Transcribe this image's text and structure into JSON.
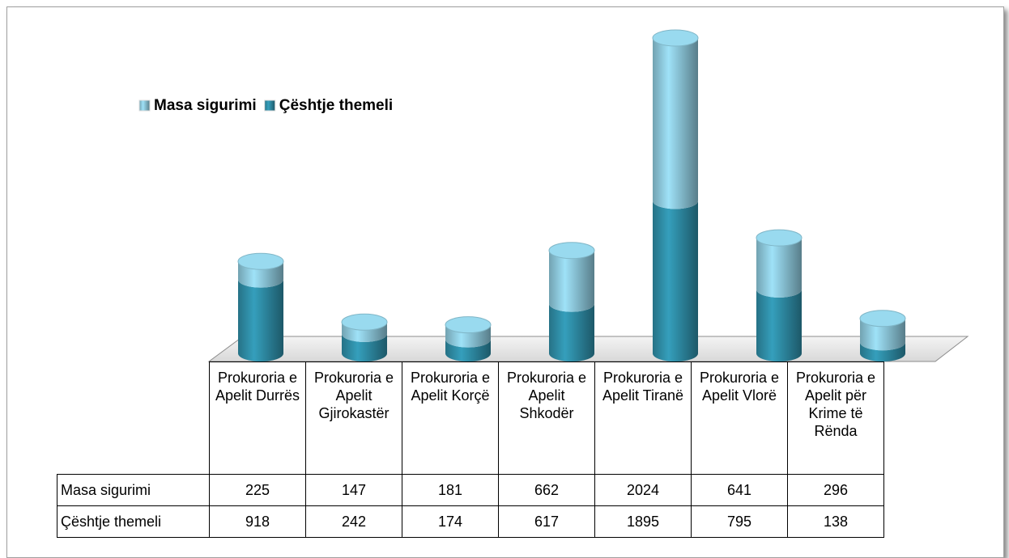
{
  "chart_data": {
    "type": "stacked-cylinder",
    "categories": [
      "Prokuroria e Apelit Durrës",
      "Prokuroria e Apelit Gjirokastër",
      "Prokuroria e Apelit Korçë",
      "Prokuroria e Apelit Shkodër",
      "Prokuroria e Apelit Tiranë",
      "Prokuroria e Apelit Vlorë",
      "Prokuroria e Apelit për Krime të Rënda"
    ],
    "series": [
      {
        "name": "Masa sigurimi",
        "color": "#8ecadd",
        "values": [
          225,
          147,
          181,
          662,
          2024,
          641,
          296
        ]
      },
      {
        "name": "Çështje  themeli",
        "color": "#2f8ea8",
        "values": [
          918,
          242,
          174,
          617,
          1895,
          795,
          138
        ]
      }
    ],
    "legend": "top-left",
    "data_table": true
  }
}
